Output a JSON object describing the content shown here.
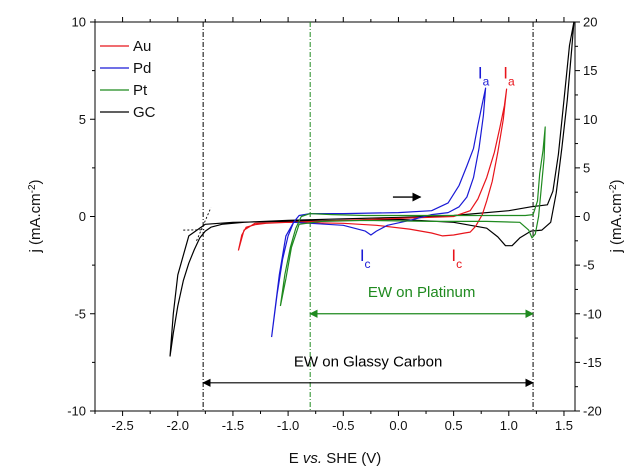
{
  "chart_data": {
    "type": "line",
    "title": "",
    "xlabel": {
      "pre": "E ",
      "em": "vs.",
      "post": " SHE (V)"
    },
    "ylabel_left": {
      "base": "j (mA.cm",
      "sup": "-2",
      "close": ")"
    },
    "ylabel_right": {
      "base": "j (mA.cm",
      "sup": "-2",
      "close": ")"
    },
    "xlim": [
      -2.75,
      1.6
    ],
    "ylim_left": [
      -10,
      10
    ],
    "ylim_right": [
      -20,
      20
    ],
    "x_ticks": [
      -2.5,
      -2.0,
      -1.5,
      -1.0,
      -0.5,
      0.0,
      0.5,
      1.0,
      1.5
    ],
    "x_tick_labels": [
      "-2.5",
      "-2.0",
      "-1.5",
      "-1.0",
      "-0.5",
      "0.0",
      "0.5",
      "1.0",
      "1.5"
    ],
    "y_left_ticks": [
      -10,
      -5,
      0,
      5,
      10
    ],
    "y_left_tick_labels": [
      "-10",
      "-5",
      "0",
      "5",
      "10"
    ],
    "y_right_ticks": [
      -20,
      -15,
      -10,
      -5,
      0,
      5,
      10,
      15,
      20
    ],
    "y_right_tick_labels": [
      "-20",
      "-15",
      "-10",
      "-5",
      "0",
      "5",
      "10",
      "15",
      "20"
    ],
    "grid": false,
    "legend": {
      "placement": "top-left",
      "entries": [
        {
          "name": "Au",
          "color": "#e8141b"
        },
        {
          "name": "Pd",
          "color": "#1a1ad6"
        },
        {
          "name": "Pt",
          "color": "#1f8a1f"
        },
        {
          "name": "GC",
          "color": "#000000"
        }
      ]
    },
    "series": [
      {
        "name": "GC",
        "color": "#000000",
        "points": [
          [
            -2.07,
            -7.2
          ],
          [
            -2.04,
            -6.0
          ],
          [
            -2.0,
            -4.6
          ],
          [
            -1.95,
            -3.3
          ],
          [
            -1.9,
            -2.4
          ],
          [
            -1.85,
            -1.7
          ],
          [
            -1.8,
            -1.1
          ],
          [
            -1.75,
            -0.75
          ],
          [
            -1.7,
            -0.55
          ],
          [
            -1.6,
            -0.4
          ],
          [
            -1.4,
            -0.3
          ],
          [
            -1.0,
            -0.2
          ],
          [
            -0.5,
            -0.12
          ],
          [
            0.0,
            -0.05
          ],
          [
            0.5,
            0.05
          ],
          [
            1.0,
            0.3
          ],
          [
            1.2,
            0.5
          ],
          [
            1.35,
            0.6
          ],
          [
            1.4,
            1.3
          ],
          [
            1.45,
            3.2
          ],
          [
            1.5,
            6.0
          ],
          [
            1.55,
            8.8
          ],
          [
            1.59,
            10.0
          ],
          [
            1.57,
            8.6
          ],
          [
            1.53,
            6.0
          ],
          [
            1.48,
            3.5
          ],
          [
            1.43,
            1.2
          ],
          [
            1.38,
            -0.3
          ],
          [
            1.3,
            -0.7
          ],
          [
            1.2,
            -0.75
          ],
          [
            1.1,
            -1.1
          ],
          [
            1.03,
            -1.5
          ],
          [
            0.97,
            -1.5
          ],
          [
            0.9,
            -1.05
          ],
          [
            0.8,
            -0.6
          ],
          [
            0.5,
            -0.3
          ],
          [
            0.0,
            -0.15
          ],
          [
            -0.5,
            -0.2
          ],
          [
            -1.0,
            -0.25
          ],
          [
            -1.5,
            -0.3
          ],
          [
            -1.75,
            -0.4
          ],
          [
            -1.9,
            -1.0
          ],
          [
            -2.0,
            -3.0
          ],
          [
            -2.04,
            -5.0
          ],
          [
            -2.07,
            -7.2
          ]
        ]
      },
      {
        "name": "Au",
        "color": "#e8141b",
        "points": [
          [
            -1.45,
            -1.75
          ],
          [
            -1.42,
            -0.95
          ],
          [
            -1.38,
            -0.55
          ],
          [
            -1.3,
            -0.42
          ],
          [
            -1.2,
            -0.35
          ],
          [
            -1.0,
            -0.3
          ],
          [
            -0.5,
            -0.2
          ],
          [
            0.0,
            -0.1
          ],
          [
            0.5,
            0.0
          ],
          [
            0.65,
            0.3
          ],
          [
            0.72,
            0.9
          ],
          [
            0.8,
            2.0
          ],
          [
            0.87,
            3.3
          ],
          [
            0.92,
            4.6
          ],
          [
            0.96,
            5.7
          ],
          [
            0.98,
            6.55
          ],
          [
            0.95,
            5.0
          ],
          [
            0.9,
            3.3
          ],
          [
            0.85,
            1.8
          ],
          [
            0.8,
            0.8
          ],
          [
            0.76,
            0.1
          ],
          [
            0.7,
            -0.5
          ],
          [
            0.65,
            -0.8
          ],
          [
            0.6,
            -0.85
          ],
          [
            0.5,
            -0.95
          ],
          [
            0.4,
            -1.0
          ],
          [
            0.3,
            -0.85
          ],
          [
            0.1,
            -0.65
          ],
          [
            -0.2,
            -0.45
          ],
          [
            -0.5,
            -0.35
          ],
          [
            -1.0,
            -0.3
          ],
          [
            -1.3,
            -0.35
          ],
          [
            -1.4,
            -0.7
          ],
          [
            -1.45,
            -1.75
          ]
        ]
      },
      {
        "name": "Pd",
        "color": "#1a1ad6",
        "points": [
          [
            -1.15,
            -6.2
          ],
          [
            -1.1,
            -4.0
          ],
          [
            -1.05,
            -2.2
          ],
          [
            -1.0,
            -1.0
          ],
          [
            -0.95,
            -0.3
          ],
          [
            -0.9,
            0.05
          ],
          [
            -0.8,
            0.15
          ],
          [
            -0.5,
            0.15
          ],
          [
            0.0,
            0.2
          ],
          [
            0.3,
            0.3
          ],
          [
            0.45,
            0.7
          ],
          [
            0.55,
            1.6
          ],
          [
            0.62,
            2.6
          ],
          [
            0.68,
            3.5
          ],
          [
            0.72,
            4.7
          ],
          [
            0.76,
            5.8
          ],
          [
            0.79,
            6.6
          ],
          [
            0.77,
            5.2
          ],
          [
            0.73,
            3.5
          ],
          [
            0.68,
            2.0
          ],
          [
            0.62,
            1.0
          ],
          [
            0.55,
            0.5
          ],
          [
            0.45,
            0.2
          ],
          [
            0.3,
            0.1
          ],
          [
            0.1,
            -0.2
          ],
          [
            -0.1,
            -0.45
          ],
          [
            -0.2,
            -0.75
          ],
          [
            -0.25,
            -0.95
          ],
          [
            -0.3,
            -0.75
          ],
          [
            -0.5,
            -0.45
          ],
          [
            -0.8,
            -0.35
          ],
          [
            -0.95,
            -0.3
          ],
          [
            -1.02,
            -1.0
          ],
          [
            -1.08,
            -3.0
          ],
          [
            -1.15,
            -6.2
          ]
        ]
      },
      {
        "name": "Pt",
        "color": "#1f8a1f",
        "points": [
          [
            -1.07,
            -4.6
          ],
          [
            -1.03,
            -3.0
          ],
          [
            -0.98,
            -1.6
          ],
          [
            -0.93,
            -0.6
          ],
          [
            -0.88,
            0.0
          ],
          [
            -0.8,
            0.15
          ],
          [
            -0.6,
            0.1
          ],
          [
            -0.3,
            0.05
          ],
          [
            0.0,
            0.05
          ],
          [
            0.5,
            0.05
          ],
          [
            1.0,
            0.05
          ],
          [
            1.15,
            0.05
          ],
          [
            1.22,
            0.1
          ],
          [
            1.26,
            0.8
          ],
          [
            1.28,
            2.2
          ],
          [
            1.31,
            3.4
          ],
          [
            1.33,
            4.6
          ],
          [
            1.32,
            3.0
          ],
          [
            1.29,
            1.2
          ],
          [
            1.27,
            0.0
          ],
          [
            1.24,
            -0.9
          ],
          [
            1.21,
            -1.1
          ],
          [
            1.18,
            -0.7
          ],
          [
            1.1,
            -0.3
          ],
          [
            0.8,
            -0.25
          ],
          [
            0.3,
            -0.25
          ],
          [
            -0.3,
            -0.2
          ],
          [
            -0.7,
            -0.25
          ],
          [
            -0.9,
            -0.4
          ],
          [
            -0.97,
            -1.6
          ],
          [
            -1.02,
            -3.2
          ],
          [
            -1.07,
            -4.6
          ]
        ]
      }
    ],
    "tangent_lines": [
      {
        "color": "#000000",
        "points": [
          [
            -1.95,
            -0.7
          ],
          [
            -1.76,
            -0.68
          ]
        ]
      },
      {
        "color": "#000000",
        "points": [
          [
            -1.83,
            -1.25
          ],
          [
            -1.7,
            0.45
          ]
        ]
      }
    ],
    "vlines": [
      {
        "x": -1.77,
        "color": "#000000",
        "style": "dashdot"
      },
      {
        "x": -0.8,
        "color": "#1f8a1f",
        "style": "dashdot"
      },
      {
        "x": 1.22,
        "color": "#000000",
        "style": "dashdot"
      }
    ],
    "sweep_arrow": {
      "color": "#000000",
      "x_from": -0.05,
      "x_to": 0.2,
      "y": 1.0
    },
    "peak_labels": [
      {
        "main": "I",
        "sub": "a",
        "color": "#1a1ad6",
        "x": 0.72,
        "y": 7.1
      },
      {
        "main": "I",
        "sub": "a",
        "color": "#e8141b",
        "x": 0.95,
        "y": 7.1
      },
      {
        "main": "I",
        "sub": "c",
        "color": "#1a1ad6",
        "x": -0.35,
        "y": -2.3
      },
      {
        "main": "I",
        "sub": "c",
        "color": "#e8141b",
        "x": 0.48,
        "y": -2.3
      }
    ],
    "annotations": [
      {
        "text": "EW on Platinum",
        "color": "#1f8a1f",
        "x_from": -0.8,
        "x_to": 1.22,
        "y": -5.0,
        "text_y": -4.15
      },
      {
        "text": "EW on Glassy Carbon",
        "color": "#000000",
        "x_from": -1.77,
        "x_to": 1.22,
        "y": -8.55,
        "text_y": -7.7
      }
    ]
  }
}
